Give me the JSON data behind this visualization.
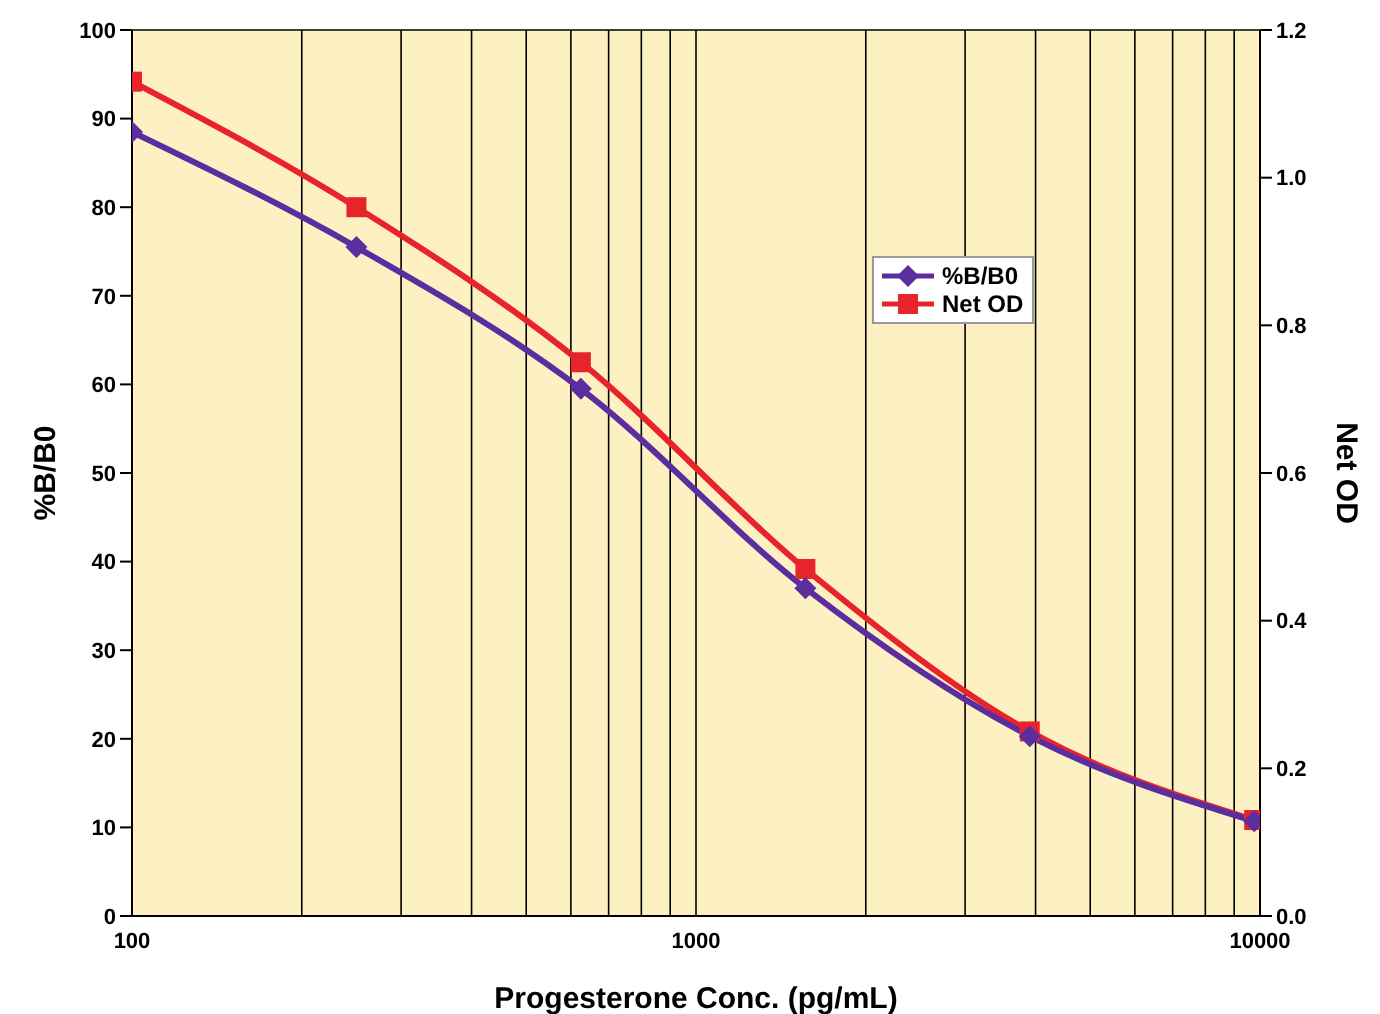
{
  "chart_data": {
    "type": "line",
    "xlabel": "Progesterone Conc. (pg/mL)",
    "ylabel": "%B/B0",
    "y2label": "Net OD",
    "x": [
      100,
      250,
      625,
      1563,
      3906,
      9766
    ],
    "series": [
      {
        "name": "%B/B0",
        "color": "#5b2d9e",
        "marker": "diamond",
        "values": [
          88.5,
          75.5,
          59.5,
          37,
          20.3,
          10.7
        ]
      },
      {
        "name": "Net OD",
        "color": "#e8242b",
        "marker": "square",
        "axis": "y2",
        "values": [
          1.13,
          0.96,
          0.75,
          0.47,
          0.25,
          0.13
        ]
      }
    ],
    "log": "x",
    "xlim": [
      100,
      10000
    ],
    "xticks": [
      100,
      {
        "value": 200,
        "label": null
      },
      {
        "value": 300,
        "label": null
      },
      {
        "value": 400,
        "label": null
      },
      {
        "value": 500,
        "label": null
      },
      {
        "value": 600,
        "label": null
      },
      {
        "value": 700,
        "label": null
      },
      {
        "value": 800,
        "label": null
      },
      {
        "value": 900,
        "label": null
      },
      1000,
      {
        "value": 2000,
        "label": null
      },
      {
        "value": 3000,
        "label": null
      },
      {
        "value": 4000,
        "label": null
      },
      {
        "value": 5000,
        "label": null
      },
      {
        "value": 6000,
        "label": null
      },
      {
        "value": 7000,
        "label": null
      },
      {
        "value": 8000,
        "label": null
      },
      {
        "value": 9000,
        "label": null
      },
      10000
    ],
    "ylim": [
      0,
      100
    ],
    "yticks": [
      0,
      10,
      20,
      30,
      40,
      50,
      60,
      70,
      80,
      90,
      100
    ],
    "y2lim": [
      0,
      1.2
    ],
    "y2ticks": [
      {
        "value": 0,
        "label": "0.0"
      },
      0.2,
      0.4,
      0.6,
      0.8,
      {
        "value": 1,
        "label": "1.0"
      },
      1.2
    ],
    "grid": true,
    "legend": "top right",
    "line_style": "solid"
  }
}
